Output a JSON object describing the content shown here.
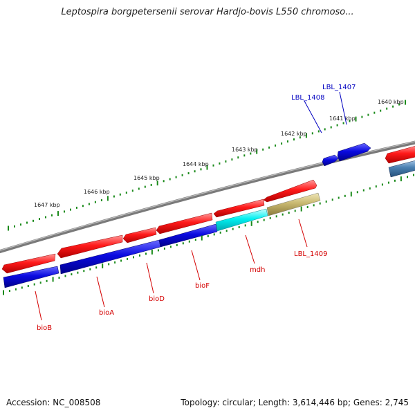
{
  "header": {
    "title": "Leptospira borgpetersenii serovar Hardjo-bovis L550 chromoso..."
  },
  "footer": {
    "accession": "Accession: NC_008508",
    "stats": "Topology: circular; Length: 3,614,446 bp; Genes: 2,745"
  },
  "colors": {
    "forward_gene": "#ff1a1a",
    "reverse_gene": "#0a0ae0",
    "cyan_gene": "#00f0f0",
    "khaki_gene": "#c8b870",
    "steel_gene": "#4a7fb0",
    "backbone": "#888888",
    "tick": "#1a8a1a",
    "label_red": "#d40000",
    "label_blue": "#0000c0"
  },
  "scale": {
    "tick_labels": [
      "1647 kbp",
      "1646 kbp",
      "1645 kbp",
      "1644 kbp",
      "1643 kbp",
      "1642 kbp",
      "1641 kbp",
      "1640 kbp"
    ]
  },
  "genes": {
    "bioB": "bioB",
    "bioA": "bioA",
    "bioD": "bioD",
    "bioF": "bioF",
    "mdh": "mdh",
    "LBL_1409": "LBL_1409",
    "LBL_1408": "LBL_1408",
    "LBL_1407": "LBL_1407"
  }
}
